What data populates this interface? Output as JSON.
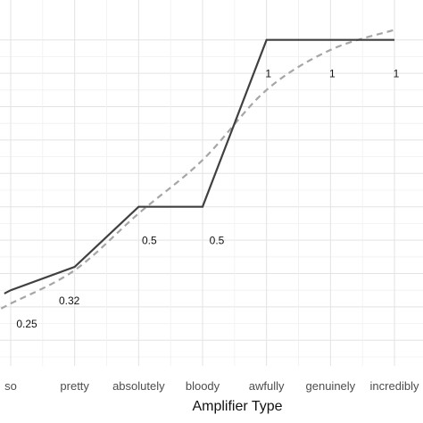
{
  "chart_data": {
    "type": "line",
    "categories": [
      "so",
      "pretty",
      "absolutely",
      "bloody",
      "awfully",
      "genuinely",
      "incredibly"
    ],
    "series": [
      {
        "style": "solid",
        "color": "#404040",
        "values": [
          0.25,
          0.32,
          0.5,
          0.5,
          1,
          1,
          1
        ]
      },
      {
        "style": "dashed",
        "color": "#a6a6a6",
        "values": [
          0.21,
          0.31,
          0.48,
          0.64,
          0.85,
          0.97,
          1.03
        ]
      }
    ],
    "data_labels": [
      "0.25",
      "0.32",
      "0.5",
      "0.5",
      "1",
      "1",
      "1"
    ],
    "xlabel": "Amplifier Type",
    "ylabel": "",
    "ylim": [
      0.05,
      1.05
    ],
    "grid": true,
    "legend": "none"
  }
}
